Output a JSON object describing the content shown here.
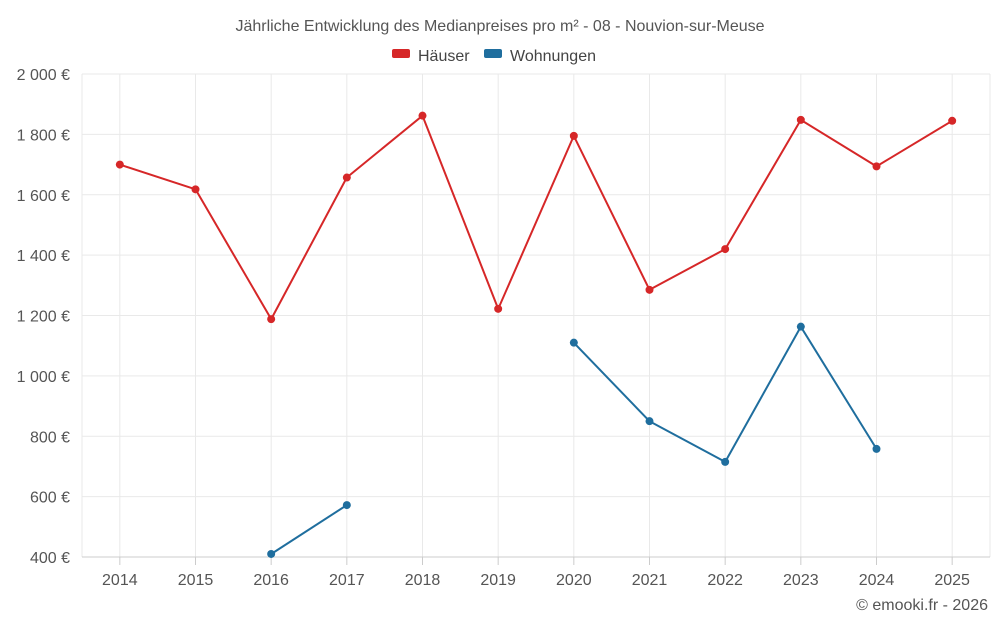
{
  "chart_data": {
    "type": "line",
    "title": "Jährliche Entwicklung des Medianpreises pro m² - 08 - Nouvion-sur-Meuse",
    "categories": [
      "2014",
      "2015",
      "2016",
      "2017",
      "2018",
      "2019",
      "2020",
      "2021",
      "2022",
      "2023",
      "2024",
      "2025"
    ],
    "series": [
      {
        "name": "Häuser",
        "color": "#d62728",
        "values": [
          1700,
          1618,
          1188,
          1657,
          1862,
          1222,
          1795,
          1285,
          1420,
          1848,
          1694,
          1845
        ]
      },
      {
        "name": "Wohnungen",
        "color": "#1f6e9e",
        "values": [
          null,
          null,
          410,
          572,
          null,
          null,
          1110,
          850,
          715,
          1163,
          758,
          null
        ]
      }
    ],
    "ylim": [
      400,
      2000
    ],
    "yticks": [
      2000,
      1800,
      1600,
      1400,
      1200,
      1000,
      800,
      600,
      400
    ],
    "ytick_labels": [
      "2 000 €",
      "1 800 €",
      "1 600 €",
      "1 400 €",
      "1 200 €",
      "1 000 €",
      "800 €",
      "600 €",
      "400 €"
    ],
    "grid": true,
    "legend_position": "top-center",
    "xlabel": "",
    "ylabel": ""
  },
  "credit": "© emooki.fr - 2026"
}
